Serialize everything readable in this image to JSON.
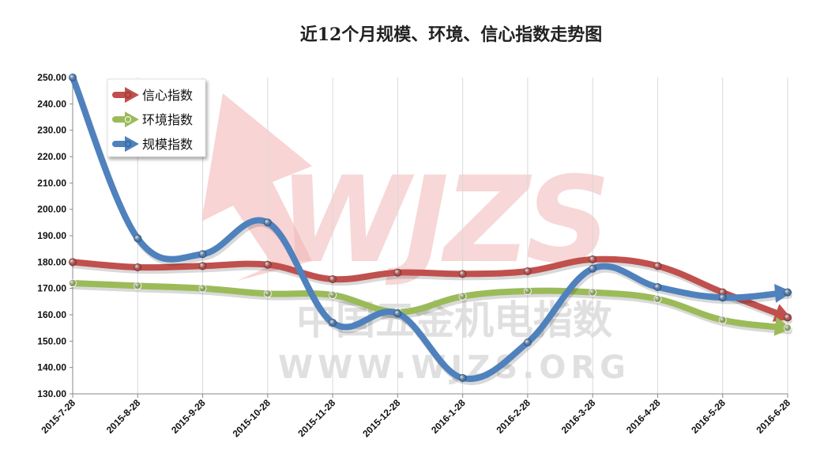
{
  "chart_data": {
    "type": "line",
    "title": "近12个月规模、环境、信心指数走势图",
    "categories": [
      "2015-7-28",
      "2015-8-28",
      "2015-9-28",
      "2015-10-28",
      "2015-11-28",
      "2015-12-28",
      "2016-1-28",
      "2016-2-28",
      "2016-3-28",
      "2016-4-28",
      "2016-5-28",
      "2016-6-28"
    ],
    "ylim": [
      130,
      250
    ],
    "ytick_step": 10,
    "grid": "vertical",
    "legend_position": "top-left",
    "series": [
      {
        "name": "信心指数",
        "color": "#c0504d",
        "values": [
          180.0,
          178.0,
          178.5,
          179.0,
          173.5,
          176.0,
          175.5,
          176.5,
          181.0,
          178.5,
          168.5,
          159.0
        ]
      },
      {
        "name": "环境指数",
        "color": "#9bbb59",
        "values": [
          172.0,
          171.0,
          170.0,
          168.0,
          167.5,
          161.0,
          167.0,
          169.0,
          168.5,
          166.0,
          158.0,
          155.0
        ]
      },
      {
        "name": "规模指数",
        "color": "#4f81bd",
        "values": [
          250.0,
          189.0,
          183.0,
          195.0,
          157.0,
          160.5,
          136.0,
          149.5,
          177.5,
          170.5,
          166.5,
          168.5
        ]
      }
    ]
  },
  "watermark": {
    "logo": "WJZS",
    "line1": "中国五金机电指数",
    "line2": "WWW.WJZS.ORG"
  }
}
